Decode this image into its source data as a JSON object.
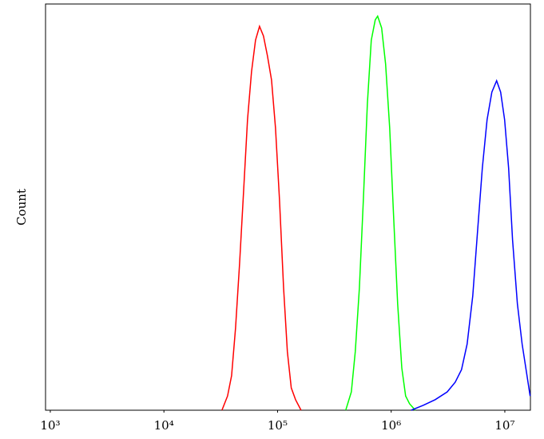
{
  "chart_data": {
    "type": "line",
    "y_label": "Count",
    "xscale": "log",
    "xlim": [
      908,
      16800000
    ],
    "ylim": [
      0,
      100
    ],
    "xticks": [
      {
        "value": 1000,
        "label": "10³"
      },
      {
        "value": 10000,
        "label": "10⁴"
      },
      {
        "value": 100000,
        "label": "10⁵"
      },
      {
        "value": 1000000,
        "label": "10⁶"
      },
      {
        "value": 10000000,
        "label": "10⁷"
      }
    ],
    "series": [
      {
        "color": "#ff0000",
        "x": [
          32400,
          36300,
          39400,
          42700,
          46300,
          50200,
          54400,
          59000,
          64000,
          69400,
          75200,
          81500,
          88500,
          95900,
          104000,
          113000,
          122000,
          132000,
          144000,
          161000
        ],
        "values": [
          0,
          3.5,
          8.5,
          20.3,
          36,
          53.7,
          71.5,
          83.3,
          91.1,
          94.5,
          92.1,
          87.2,
          81.3,
          69.5,
          51.8,
          30.1,
          14.4,
          5.5,
          2.6,
          0
        ]
      },
      {
        "color": "#00ff00",
        "x": [
          398000,
          446000,
          483000,
          525000,
          569000,
          617000,
          668000,
          724000,
          760000,
          824000,
          893000,
          970000,
          1050000,
          1140000,
          1240000,
          1340000,
          1450000,
          1630000
        ],
        "values": [
          0,
          4.5,
          14.4,
          30.1,
          51.8,
          75.4,
          91.1,
          96.1,
          97,
          94.1,
          85.2,
          69.5,
          47.8,
          26.2,
          10.4,
          3.5,
          1.6,
          0
        ]
      },
      {
        "color": "#0000ff",
        "x": [
          1500000,
          1910000,
          2440000,
          3110000,
          3660000,
          4160000,
          4660000,
          5220000,
          5750000,
          6340000,
          6980000,
          7690000,
          8470000,
          9190000,
          9960000,
          10800000,
          11700000,
          12900000,
          14200000,
          15700000,
          16700000
        ],
        "values": [
          0,
          1.2,
          2.6,
          4.5,
          6.9,
          10,
          16.3,
          28.1,
          43.9,
          59.6,
          71.5,
          78.3,
          81.1,
          78.3,
          71.5,
          59.6,
          41.9,
          26.2,
          16.3,
          8.4,
          3.5
        ]
      }
    ]
  }
}
